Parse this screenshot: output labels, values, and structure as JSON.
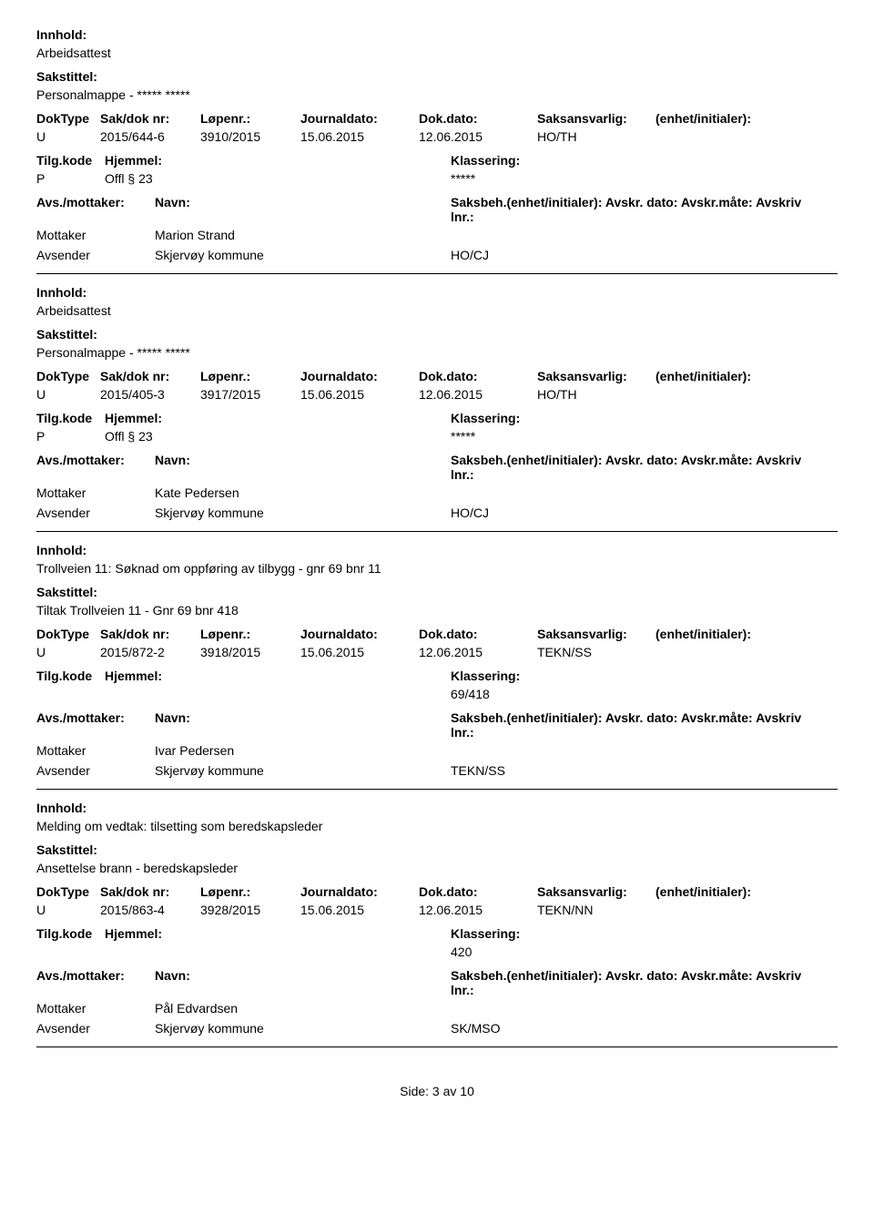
{
  "labels": {
    "innhold": "Innhold:",
    "sakstittel": "Sakstittel:",
    "doktype": "DokType",
    "sakdok": "Sak/dok nr:",
    "lopenr": "Løpenr.:",
    "journaldato": "Journaldato:",
    "dokdato": "Dok.dato:",
    "saksansvarlig": "Saksansvarlig:",
    "enhet": "(enhet/initialer):",
    "tilgkode": "Tilg.kode",
    "hjemmel": "Hjemmel:",
    "klassering": "Klassering:",
    "avsmottaker": "Avs./mottaker:",
    "navn": "Navn:",
    "saksbeh": "Saksbeh.(enhet/initialer): Avskr. dato:  Avskr.måte:  Avskriv lnr.:",
    "mottaker": "Mottaker",
    "avsender": "Avsender"
  },
  "records": [
    {
      "innhold": "Arbeidsattest",
      "sakstittel": "Personalmappe - ***** *****",
      "doktype": "U",
      "sakdok": "2015/644-6",
      "lopenr": "3910/2015",
      "journaldato": "15.06.2015",
      "dokdato": "12.06.2015",
      "saksansvarlig": "HO/TH",
      "enhet": "",
      "tilgkode": "P",
      "hjemmel": "Offl § 23",
      "klassering": "*****",
      "mottaker_name": "Marion Strand",
      "mottaker_code": "",
      "avsender_name": "Skjervøy kommune",
      "avsender_code": "HO/CJ"
    },
    {
      "innhold": "Arbeidsattest",
      "sakstittel": "Personalmappe - ***** *****",
      "doktype": "U",
      "sakdok": "2015/405-3",
      "lopenr": "3917/2015",
      "journaldato": "15.06.2015",
      "dokdato": "12.06.2015",
      "saksansvarlig": "HO/TH",
      "enhet": "",
      "tilgkode": "P",
      "hjemmel": "Offl § 23",
      "klassering": "*****",
      "mottaker_name": "Kate Pedersen",
      "mottaker_code": "",
      "avsender_name": "Skjervøy kommune",
      "avsender_code": "HO/CJ"
    },
    {
      "innhold": "Trollveien 11: Søknad om oppføring av tilbygg - gnr 69 bnr 11",
      "sakstittel": "Tiltak Trollveien 11 - Gnr 69 bnr 418",
      "doktype": "U",
      "sakdok": "2015/872-2",
      "lopenr": "3918/2015",
      "journaldato": "15.06.2015",
      "dokdato": "12.06.2015",
      "saksansvarlig": "TEKN/SS",
      "enhet": "",
      "tilgkode": "",
      "hjemmel": "",
      "klassering": "69/418",
      "mottaker_name": "Ivar Pedersen",
      "mottaker_code": "",
      "avsender_name": "Skjervøy kommune",
      "avsender_code": "TEKN/SS"
    },
    {
      "innhold": "Melding om vedtak: tilsetting som beredskapsleder",
      "sakstittel": "Ansettelse brann - beredskapsleder",
      "doktype": "U",
      "sakdok": "2015/863-4",
      "lopenr": "3928/2015",
      "journaldato": "15.06.2015",
      "dokdato": "12.06.2015",
      "saksansvarlig": "TEKN/NN",
      "enhet": "",
      "tilgkode": "",
      "hjemmel": "",
      "klassering": "420",
      "mottaker_name": "Pål Edvardsen",
      "mottaker_code": "",
      "avsender_name": "Skjervøy kommune",
      "avsender_code": "SK/MSO"
    }
  ],
  "footer": {
    "text": "Side:  3 av 10"
  }
}
